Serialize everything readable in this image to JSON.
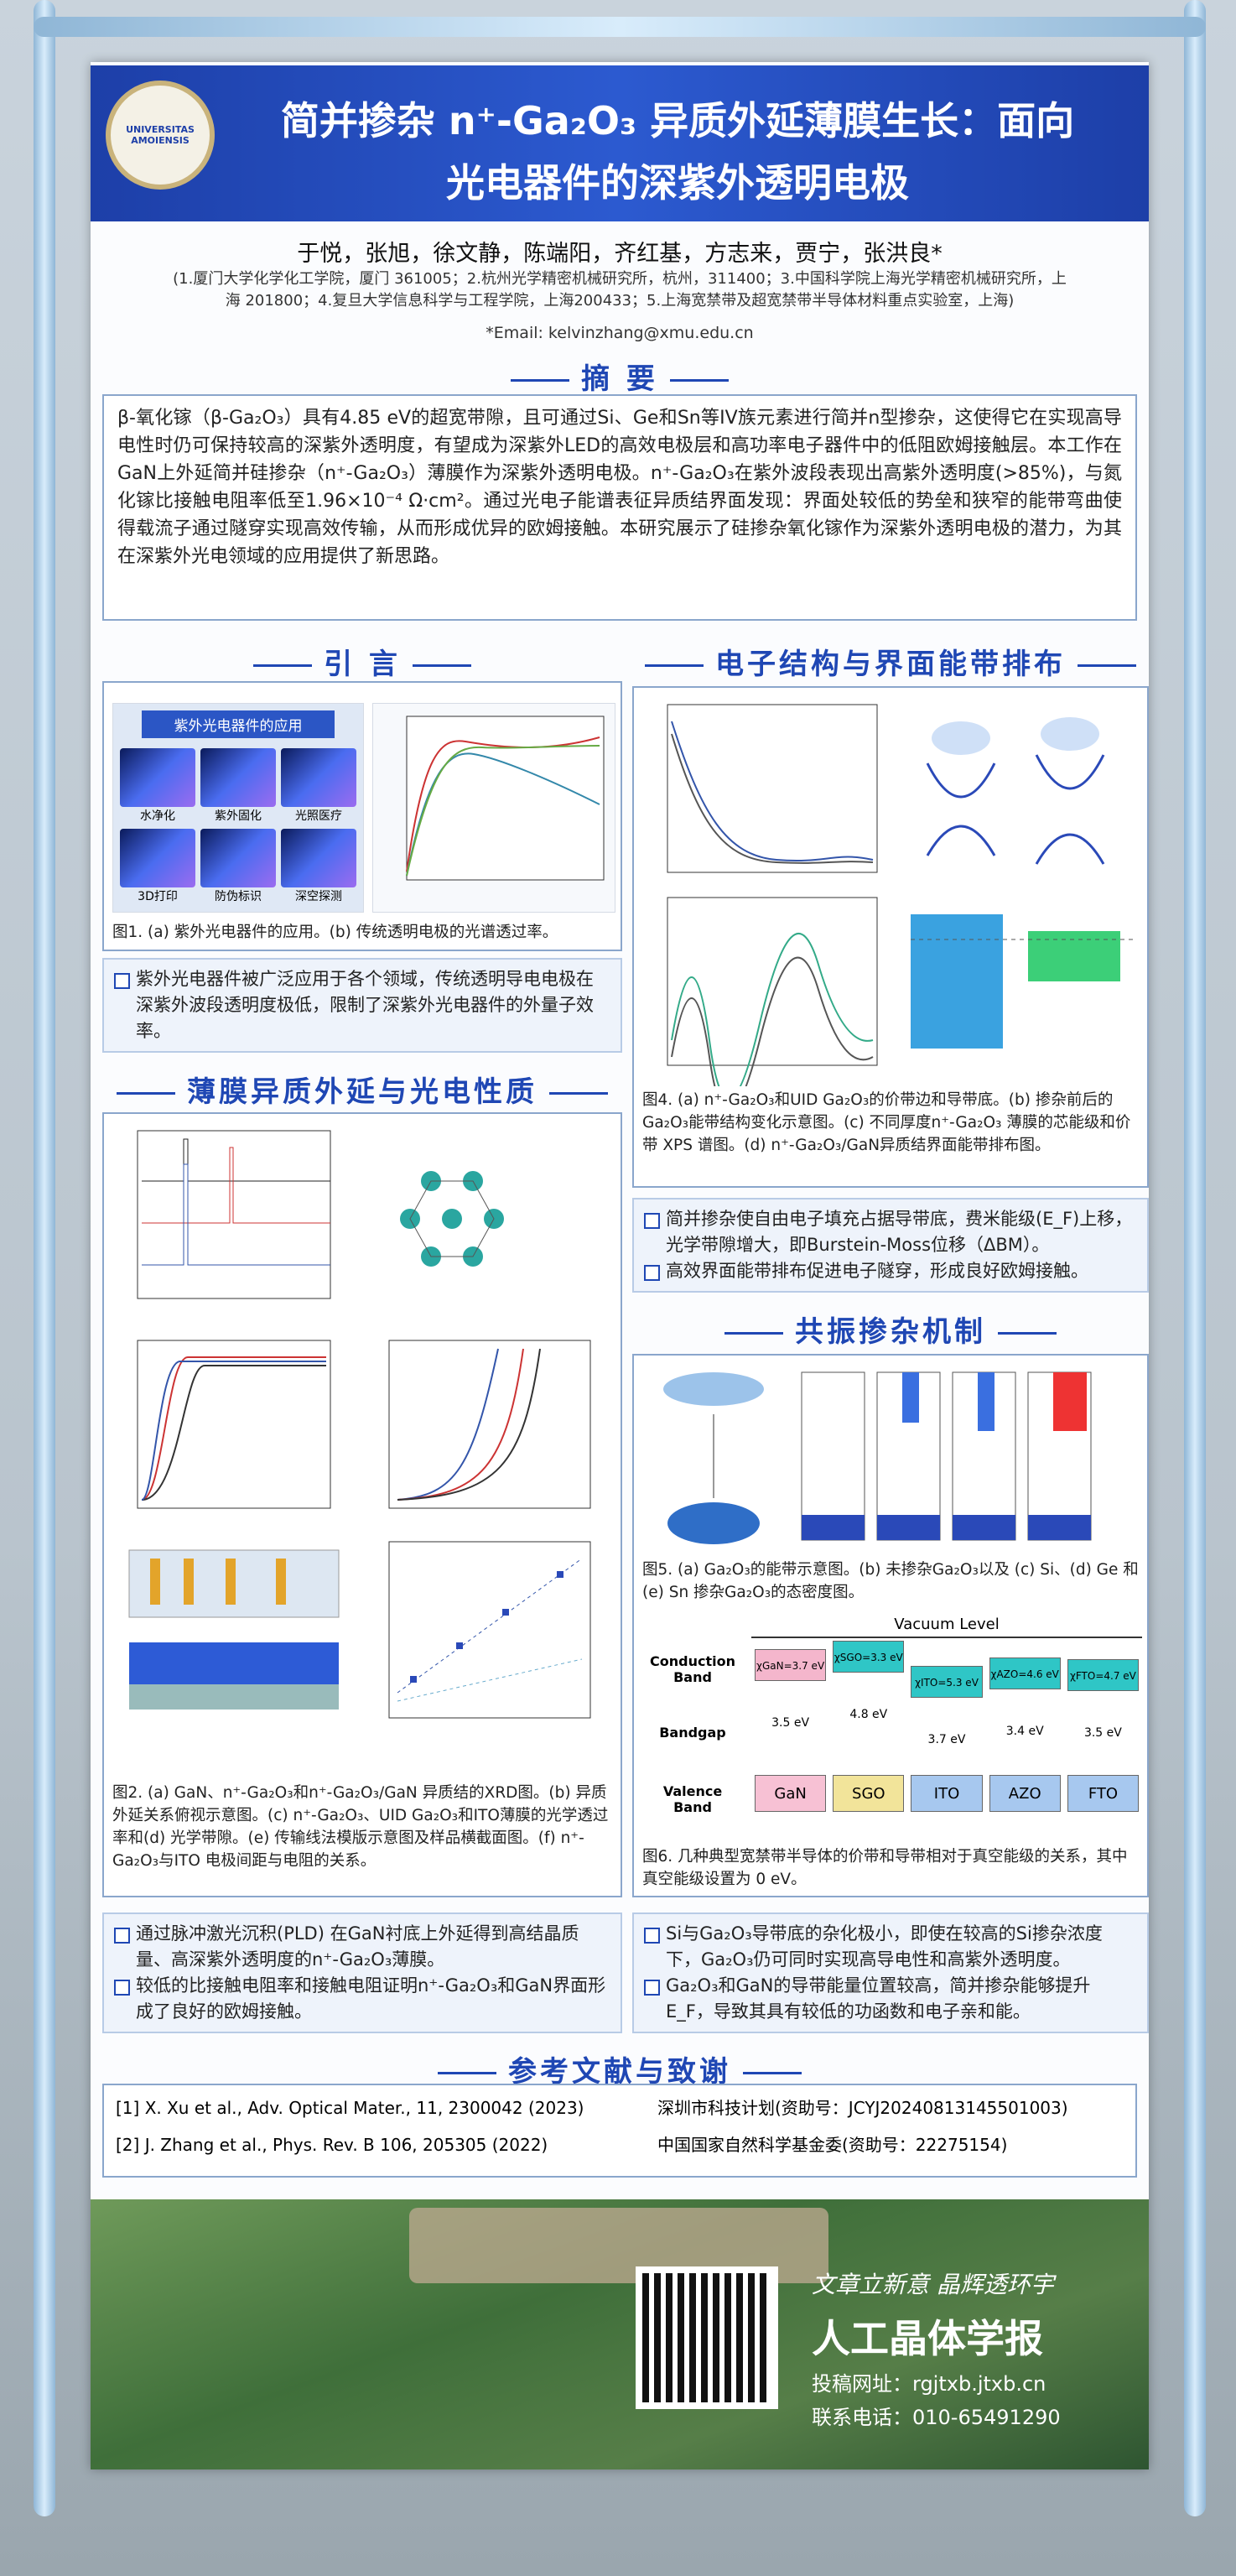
{
  "header": {
    "logo": "UNIVERSITAS AMOIENSIS",
    "title": [
      "简并掺杂 n⁺-Ga₂O₃ 异质外延薄膜生长：面向",
      "光电器件的深紫外透明电极"
    ]
  },
  "authors": "于悦，张旭，徐文静，陈端阳，齐红基，方志来，贾宁，张洪良*",
  "affiliations": "(1.厦门大学化学化工学院，厦门 361005；2.杭州光学精密机械研究所，杭州，311400；3.中国科学院上海光学精密机械研究所，上海 201800；4.复旦大学信息科学与工程学院，上海200433；5.上海宽禁带及超宽禁带半导体材料重点实验室，上海)",
  "email": "*Email: kelvinzhang@xmu.edu.cn",
  "abstract": {
    "heading": "摘 要",
    "text": "β-氧化镓（β-Ga₂O₃）具有4.85 eV的超宽带隙，且可通过Si、Ge和Sn等IV族元素进行简并n型掺杂，这使得它在实现高导电性时仍可保持较高的深紫外透明度，有望成为深紫外LED的高效电极层和高功率电子器件中的低阻欧姆接触层。本工作在GaN上外延简并硅掺杂（n⁺-Ga₂O₃）薄膜作为深紫外透明电极。n⁺-Ga₂O₃在紫外波段表现出高紫外透明度(>85%)，与氮化镓比接触电阻率低至1.96×10⁻⁴ Ω·cm²。通过光电子能谱表征异质结界面发现：界面处较低的势垒和狭窄的能带弯曲使得载流子通过隧穿实现高效传输，从而形成优异的欧姆接触。本研究展示了硅掺杂氧化镓作为深紫外透明电极的潜力，为其在深紫外光电领域的应用提供了新思路。"
  },
  "intro": {
    "heading": "引 言",
    "fig_title": "紫外光电器件的应用",
    "apps": [
      "水净化",
      "紫外固化",
      "光照医疗",
      "3D打印",
      "防伪标识",
      "深空探测"
    ],
    "caption": "图1. (a) 紫外光电器件的应用。(b) 传统透明电极的光谱透过率。",
    "bullets": [
      "紫外光电器件被广泛应用于各个领域，传统透明导电电极在深紫外波段透明度极低，限制了深紫外光电器件的外量子效率。"
    ]
  },
  "film": {
    "heading": "薄膜异质外延与光电性质",
    "caption": "图2. (a) GaN、n⁺-Ga₂O₃和n⁺-Ga₂O₃/GaN 异质结的XRD图。(b) 异质外延关系俯视示意图。(c) n⁺-Ga₂O₃、UID Ga₂O₃和ITO薄膜的光学透过率和(d) 光学带隙。(e) 传输线法模版示意图及样品横截面图。(f) n⁺-Ga₂O₃与ITO 电极间距与电阻的关系。"
  },
  "band": {
    "heading": "电子结构与界面能带排布",
    "caption": "图4. (a) n⁺-Ga₂O₃和UID Ga₂O₃的价带边和导带底。(b) 掺杂前后的Ga₂O₃能带结构变化示意图。(c) 不同厚度n⁺-Ga₂O₃ 薄膜的芯能级和价带 XPS 谱图。(d) n⁺-Ga₂O₃/GaN异质结界面能带排布图。",
    "bullets": [
      "简并掺杂使自由电子填充占据导带底，费米能级(E_F)上移，光学带隙增大，即Burstein-Moss位移（ΔBM）。",
      "高效界面能带排布促进电子隧穿，形成良好欧姆接触。"
    ]
  },
  "resonance": {
    "heading": "共振掺杂机制",
    "caption5": "图5. (a) Ga₂O₃的能带示意图。(b) 未掺杂Ga₂O₃以及 (c) Si、(d) Ge 和 (e) Sn 掺杂Ga₂O₃的态密度图。",
    "fig6": {
      "vacuum": "Vacuum Level",
      "rows": [
        "Conduction Band",
        "Bandgap",
        "Valence Band"
      ],
      "materials": [
        "GaN",
        "SGO",
        "ITO",
        "AZO",
        "FTO"
      ],
      "affinities": [
        "χGaN=3.7 eV",
        "χSGO=3.3 eV",
        "χITO=5.3 eV",
        "χAZO=4.6 eV",
        "χFTO=4.7 eV"
      ],
      "gaps": [
        "3.5 eV",
        "4.8 eV",
        "3.7 eV",
        "3.4 eV",
        "3.5 eV"
      ]
    },
    "caption6": "图6. 几种典型宽禁带半导体的价带和导带相对于真空能级的关系，其中真空能级设置为 0 eV。"
  },
  "conclusions": {
    "left": [
      "通过脉冲激光沉积(PLD) 在GaN衬底上外延得到高结晶质量、高深紫外透明度的n⁺-Ga₂O₃薄膜。",
      "较低的比接触电阻率和接触电阻证明n⁺-Ga₂O₃和GaN界面形成了良好的欧姆接触。"
    ],
    "right": [
      "Si与Ga₂O₃导带底的杂化极小，即使在较高的Si掺杂浓度下，Ga₂O₃仍可同时实现高导电性和高紫外透明度。",
      "Ga₂O₃和GaN的导带能量位置较高，简并掺杂能够提升E_F，导致其具有较低的功函数和电子亲和能。"
    ]
  },
  "references": {
    "heading": "参考文献与致谢",
    "items": [
      "[1] X. Xu et al., Adv. Optical Mater., 11, 2300042 (2023)",
      "[2] J. Zhang et al., Phys. Rev. B 106, 205305 (2022)"
    ],
    "funding": [
      "深圳市科技计划(资助号：JCYJ20240813145501003)",
      "中国国家自然科学基金委(资助号：22275154)"
    ]
  },
  "footer": {
    "slogan": "文章立新意 晶辉透环宇",
    "journal": "人工晶体学报",
    "site": "投稿网址：rgjtxb.jtxb.cn",
    "phone": "联系电话：010-65491290"
  }
}
